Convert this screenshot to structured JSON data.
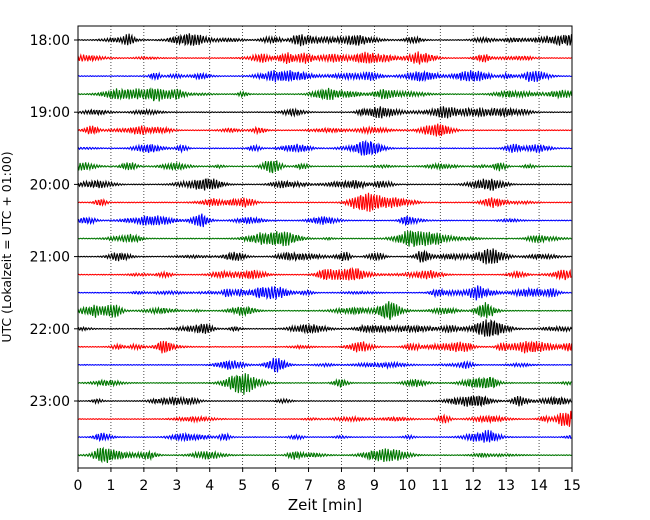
{
  "chart_data": {
    "type": "line",
    "title": "",
    "xlabel": "Zeit  [min]",
    "ylabel": "UTC (Lokalzeit = UTC + 01:00)",
    "xlim": [
      0,
      15
    ],
    "x_ticks": [
      0,
      1,
      2,
      3,
      4,
      5,
      6,
      7,
      8,
      9,
      10,
      11,
      12,
      13,
      14,
      15
    ],
    "x_tick_labels": [
      "0",
      "1",
      "2",
      "3",
      "4",
      "5",
      "6",
      "7",
      "8",
      "9",
      "10",
      "11",
      "12",
      "13",
      "14",
      "15"
    ],
    "y_tick_labels": [
      "18:00",
      "19:00",
      "20:00",
      "21:00",
      "22:00",
      "23:00"
    ],
    "trace_start_times": [
      "18:00",
      "18:15",
      "18:30",
      "18:45",
      "19:00",
      "19:15",
      "19:30",
      "19:45",
      "20:00",
      "20:15",
      "20:30",
      "20:45",
      "21:00",
      "21:15",
      "21:30",
      "21:45",
      "22:00",
      "22:15",
      "22:30",
      "22:45",
      "23:00",
      "23:15",
      "23:30",
      "23:45"
    ],
    "trace_colors": [
      "#000000",
      "#ff0000",
      "#0000ff",
      "#007700"
    ],
    "grid": {
      "x_dotted": true,
      "y": false
    },
    "legend": "none"
  }
}
